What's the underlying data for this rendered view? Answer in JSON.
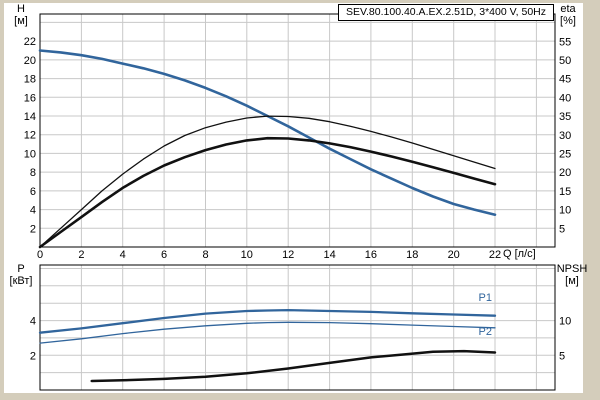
{
  "title": "SEV.80.100.40.A.EX.2.51D, 3*400 V, 50Hz",
  "axis_labels": {
    "top_left_1": "H",
    "top_left_2": "[м]",
    "top_right_1": "eta",
    "top_right_2": "[%]",
    "bottom_left_1": "P",
    "bottom_left_2": "[кВт]",
    "bottom_right_1": "NPSH",
    "bottom_right_2": "[м]",
    "x_axis": "Q [л/с]"
  },
  "colors": {
    "page_bg": "#d4cdbb",
    "canvas_bg": "#ffffff",
    "grid": "#c8c8c8",
    "border": "#000000",
    "blue": "#31659c",
    "black": "#111111"
  },
  "chart_data": [
    {
      "type": "line",
      "name": "head-efficiency",
      "title": "SEV.80.100.40.A.EX.2.51D, 3*400 V, 50Hz",
      "x_label": "Q [л/с]",
      "x_range": [
        0,
        24.9
      ],
      "x_ticks": [
        0,
        2,
        4,
        6,
        8,
        10,
        12,
        14,
        16,
        18,
        20,
        22
      ],
      "x_grid": [
        2,
        4,
        6,
        8,
        10,
        12,
        14,
        16,
        18,
        20,
        22,
        24
      ],
      "show_x_tick_labels": true,
      "left_axis": {
        "label": "H [м]",
        "range": [
          0,
          24.9
        ],
        "ticks": [
          2,
          4,
          6,
          8,
          10,
          12,
          14,
          16,
          18,
          20,
          22
        ],
        "grid": [
          2,
          4,
          6,
          8,
          10,
          12,
          14,
          16,
          18,
          20,
          22,
          24
        ]
      },
      "right_axis": {
        "label": "eta [%]",
        "range": [
          0,
          62.3
        ],
        "ticks": [
          5,
          10,
          15,
          20,
          25,
          30,
          35,
          40,
          45,
          50,
          55
        ]
      },
      "series": [
        {
          "name": "H-Q",
          "axis": "left",
          "color": "blue",
          "width": 2.6,
          "x": [
            0,
            1,
            2,
            3,
            4,
            5,
            6,
            7,
            8,
            9,
            10,
            11,
            12,
            13,
            14,
            15,
            16,
            17,
            18,
            19,
            20,
            21,
            22
          ],
          "y": [
            21,
            20.8,
            20.5,
            20.1,
            19.6,
            19.1,
            18.5,
            17.8,
            17,
            16.1,
            15.1,
            14,
            12.9,
            11.7,
            10.5,
            9.4,
            8.3,
            7.3,
            6.3,
            5.4,
            4.6,
            4,
            3.45
          ]
        },
        {
          "name": "eta-thin",
          "axis": "right",
          "color": "black",
          "width": 1.3,
          "x": [
            0,
            1,
            2,
            3,
            4,
            5,
            6,
            7,
            8,
            9,
            10,
            11,
            12,
            13,
            14,
            15,
            16,
            17,
            18,
            19,
            20,
            21,
            22
          ],
          "y": [
            0,
            5,
            10,
            15,
            19.5,
            23.5,
            27,
            29.8,
            31.9,
            33.4,
            34.5,
            35,
            34.9,
            34.4,
            33.5,
            32.3,
            30.9,
            29.4,
            27.8,
            26.1,
            24.4,
            22.7,
            21
          ]
        },
        {
          "name": "eta-thick",
          "axis": "right",
          "color": "black",
          "width": 2.6,
          "x": [
            0,
            1,
            2,
            3,
            4,
            5,
            6,
            7,
            8,
            9,
            10,
            11,
            12,
            13,
            14,
            15,
            16,
            17,
            18,
            19,
            20,
            21,
            22
          ],
          "y": [
            0,
            4,
            8,
            12,
            15.8,
            19,
            21.8,
            24,
            25.9,
            27.4,
            28.5,
            29.1,
            29,
            28.5,
            27.7,
            26.7,
            25.5,
            24.2,
            22.8,
            21.3,
            19.8,
            18.3,
            16.8
          ]
        }
      ],
      "annotations": []
    },
    {
      "type": "line",
      "name": "power-npsh",
      "x_label": "",
      "x_range": [
        0,
        24.9
      ],
      "x_ticks": [
        0,
        2,
        4,
        6,
        8,
        10,
        12,
        14,
        16,
        18,
        20,
        22
      ],
      "x_grid": [
        2,
        4,
        6,
        8,
        10,
        12,
        14,
        16,
        18,
        20,
        22,
        24
      ],
      "show_x_tick_labels": false,
      "left_axis": {
        "label": "P [кВт]",
        "range": [
          0,
          7.2
        ],
        "ticks": [
          2,
          4
        ],
        "grid": [
          1,
          2,
          3,
          4,
          5,
          6,
          7
        ]
      },
      "right_axis": {
        "label": "NPSH [м]",
        "range": [
          0,
          18
        ],
        "ticks": [
          5,
          10
        ]
      },
      "series": [
        {
          "name": "P1",
          "axis": "left",
          "color": "blue",
          "width": 2.3,
          "x": [
            0,
            2,
            4,
            6,
            8,
            10,
            11,
            12,
            14,
            16,
            18,
            20,
            22
          ],
          "y": [
            3.3,
            3.55,
            3.85,
            4.15,
            4.4,
            4.55,
            4.58,
            4.6,
            4.55,
            4.5,
            4.42,
            4.35,
            4.28
          ]
        },
        {
          "name": "P2",
          "axis": "left",
          "color": "blue",
          "width": 1.3,
          "x": [
            0,
            2,
            4,
            6,
            8,
            10,
            11,
            12,
            14,
            16,
            18,
            20,
            22
          ],
          "y": [
            2.7,
            2.95,
            3.25,
            3.5,
            3.7,
            3.84,
            3.88,
            3.9,
            3.88,
            3.82,
            3.74,
            3.66,
            3.58
          ]
        },
        {
          "name": "NPSH",
          "axis": "right",
          "color": "black",
          "width": 2.5,
          "x": [
            2.5,
            4,
            6,
            8,
            10,
            12,
            14,
            16,
            17.5,
            19,
            20.5,
            22
          ],
          "y": [
            1.3,
            1.4,
            1.6,
            1.9,
            2.4,
            3.1,
            3.9,
            4.7,
            5.1,
            5.5,
            5.6,
            5.4
          ]
        }
      ],
      "annotations": [
        {
          "text": "P1",
          "x": 21.2,
          "y": 5.35,
          "axis": "left"
        },
        {
          "text": "P2",
          "x": 21.2,
          "y": 3.4,
          "axis": "left"
        }
      ]
    }
  ]
}
